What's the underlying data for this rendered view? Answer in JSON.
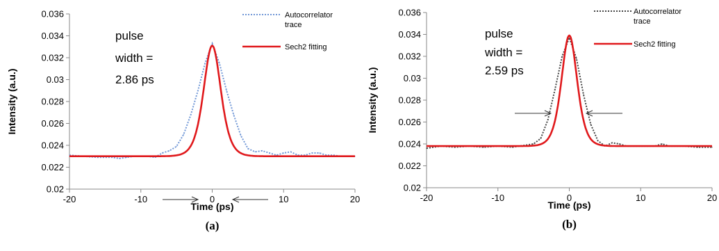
{
  "chart_data": [
    {
      "type": "line",
      "caption": "(a)",
      "xlabel": "Time (ps)",
      "ylabel": "Intensity (a.u.)",
      "xlim": [
        -20,
        20
      ],
      "ylim": [
        0.02,
        0.036
      ],
      "xticks": [
        "-20",
        "-10",
        "0",
        "10",
        "20"
      ],
      "yticks": [
        "0.02",
        "0.022",
        "0.024",
        "0.026",
        "0.028",
        "0.03",
        "0.032",
        "0.034",
        "0.036"
      ],
      "annotation": [
        "pulse",
        "width  =",
        "2.86 ps"
      ],
      "legend": [
        {
          "name": "Autocorrelator",
          "name2": "trace",
          "color": "#6f96d6",
          "style": "dotted"
        },
        {
          "name": "Sech2 fitting",
          "name2": "",
          "color": "#e0181b",
          "style": "solid"
        }
      ],
      "series": [
        {
          "name": "Autocorrelator trace",
          "x": [
            -20,
            -18,
            -16,
            -14,
            -13,
            -12,
            -11,
            -10,
            -9,
            -8,
            -7,
            -6,
            -5,
            -4,
            -3,
            -2,
            -1,
            0,
            1,
            2,
            3,
            4,
            5,
            6,
            7,
            8,
            9,
            10,
            11,
            12,
            13,
            14,
            15,
            16,
            17,
            18,
            20
          ],
          "y": [
            0.0231,
            0.023,
            0.0229,
            0.0229,
            0.0228,
            0.0229,
            0.023,
            0.023,
            0.023,
            0.0229,
            0.0233,
            0.0235,
            0.0239,
            0.025,
            0.0268,
            0.029,
            0.0315,
            0.0333,
            0.0315,
            0.029,
            0.0268,
            0.0249,
            0.0237,
            0.0234,
            0.0235,
            0.0233,
            0.0231,
            0.0233,
            0.0234,
            0.0231,
            0.0231,
            0.0233,
            0.0233,
            0.0231,
            0.0231,
            0.023,
            0.023
          ]
        },
        {
          "name": "Sech2 fitting",
          "function": "sech2",
          "baseline": 0.023,
          "peak": 0.0331,
          "fwhm": 2.86
        }
      ]
    },
    {
      "type": "line",
      "caption": "(b)",
      "xlabel": "Time (ps)",
      "ylabel": "Intensity (a.u.)",
      "xlim": [
        -20,
        20
      ],
      "ylim": [
        0.02,
        0.036
      ],
      "xticks": [
        "-20",
        "-10",
        "0",
        "10",
        "20"
      ],
      "yticks": [
        "0.02",
        "0.022",
        "0.024",
        "0.026",
        "0.028",
        "0.03",
        "0.032",
        "0.034",
        "0.036"
      ],
      "annotation": [
        "pulse",
        "width  =",
        "2.59 ps"
      ],
      "legend": [
        {
          "name": "Autocorrelator",
          "name2": "trace",
          "color": "#444444",
          "style": "dotted"
        },
        {
          "name": "Sech2 fitting",
          "name2": "",
          "color": "#e0181b",
          "style": "solid"
        }
      ],
      "series": [
        {
          "name": "Autocorrelator trace",
          "x": [
            -20,
            -18,
            -16,
            -14,
            -12,
            -10,
            -8,
            -7,
            -6,
            -5,
            -4,
            -3,
            -2,
            -1,
            0,
            1,
            2,
            3,
            4,
            5,
            6,
            7,
            8,
            10,
            12,
            13,
            14,
            16,
            18,
            20
          ],
          "y": [
            0.0236,
            0.0238,
            0.0237,
            0.0238,
            0.0237,
            0.0238,
            0.0237,
            0.0238,
            0.0239,
            0.024,
            0.0245,
            0.0262,
            0.029,
            0.032,
            0.0337,
            0.0318,
            0.0285,
            0.0258,
            0.0243,
            0.0238,
            0.0241,
            0.024,
            0.0238,
            0.0238,
            0.0238,
            0.024,
            0.0238,
            0.0238,
            0.0237,
            0.0237
          ]
        },
        {
          "name": "Sech2 fitting",
          "function": "sech2",
          "baseline": 0.0238,
          "peak": 0.0339,
          "fwhm": 2.59
        }
      ]
    }
  ]
}
